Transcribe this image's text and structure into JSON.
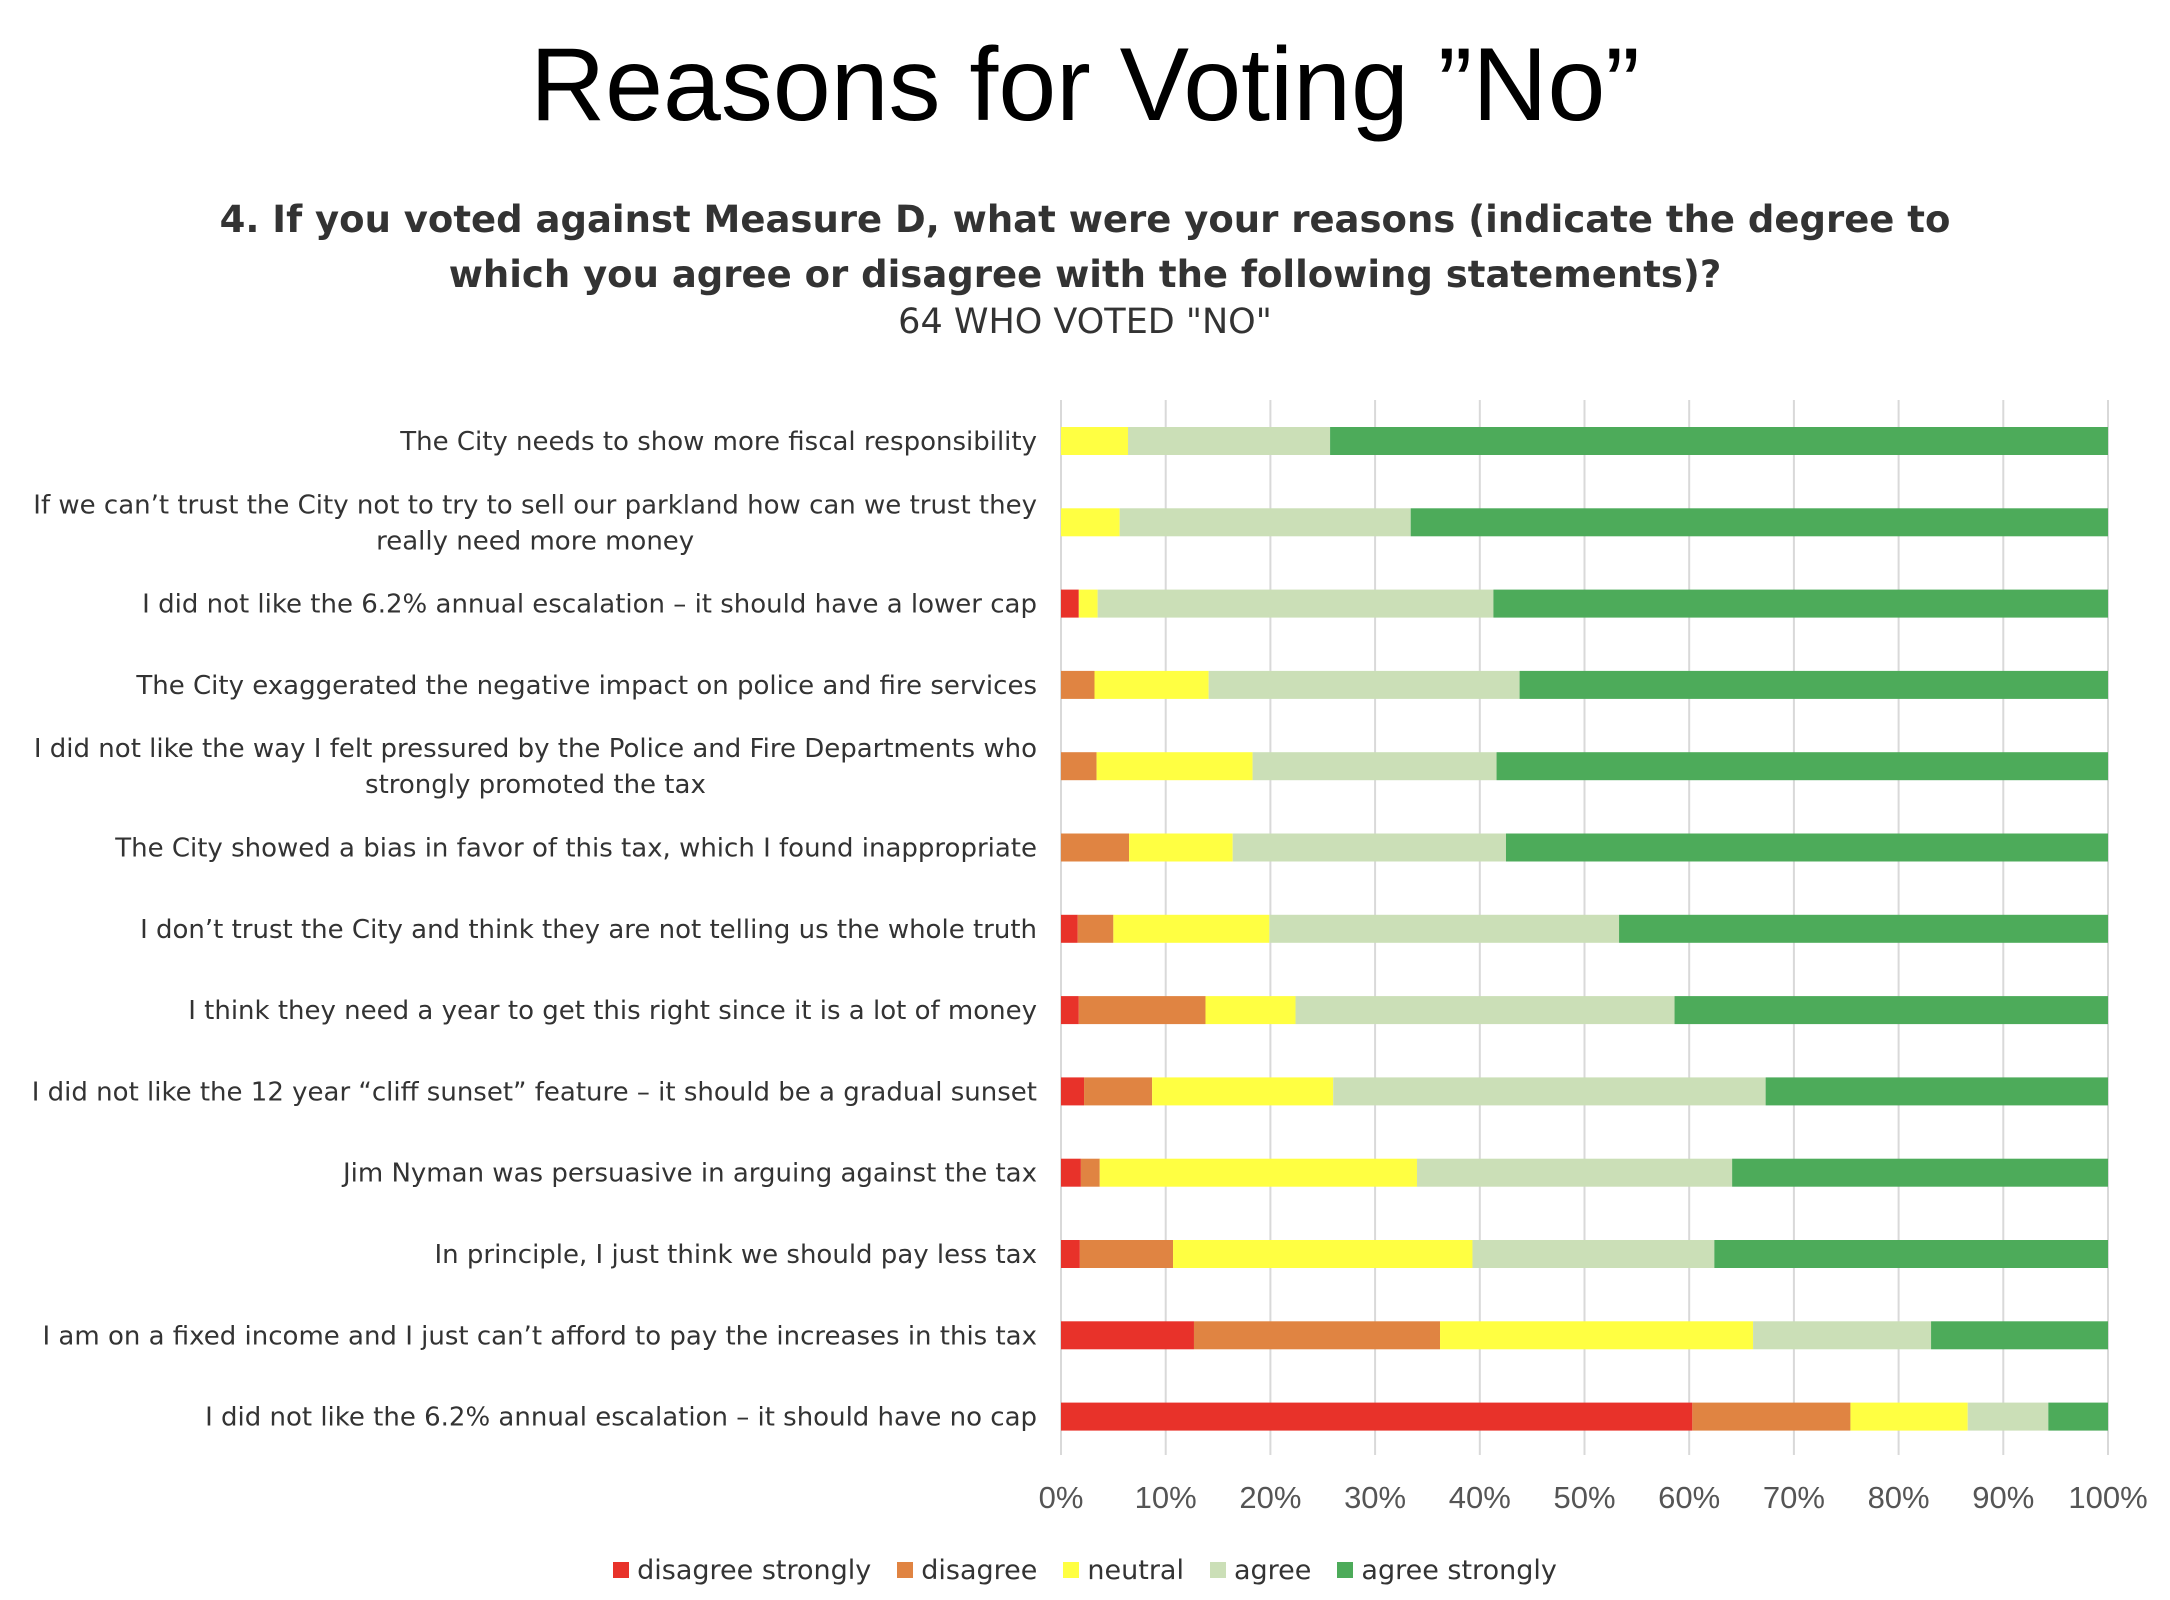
{
  "slide": {
    "title": "Reasons for Voting ”No”",
    "question": "4. If you voted against Measure D, what were your reasons (indicate the degree to which you agree or disagree with the following statements)?",
    "subtitle": "64 WHO VOTED \"NO\""
  },
  "chart_data": {
    "type": "bar",
    "orientation": "horizontal",
    "stacked": "percent",
    "title": "",
    "xlabel": "",
    "ylabel": "",
    "xlim": [
      0,
      100
    ],
    "x_ticks": [
      "0%",
      "10%",
      "20%",
      "30%",
      "40%",
      "50%",
      "60%",
      "70%",
      "80%",
      "90%",
      "100%"
    ],
    "grid": true,
    "legend_position": "bottom",
    "categories": [
      "The City needs to show more fiscal responsibility",
      "If we can’t trust the City not to try to sell our parkland how can we trust they really need more money",
      "I did not like the 6.2% annual escalation – it should have a lower cap",
      "The City exaggerated the negative impact on police and fire services",
      "I did not like the way I felt pressured by the Police and Fire Departments who strongly promoted the tax",
      "The City showed a bias in favor of this tax, which I found inappropriate",
      "I don’t trust the City and think they are not telling us the whole truth",
      "I think they need a year to get this right since it is a lot of money",
      "I did not like the 12 year “cliff sunset” feature – it should be a gradual sunset",
      "Jim Nyman was persuasive in arguing against the tax",
      "In principle, I just think we should pay less tax",
      "I am on a fixed income and I just can’t afford to pay the increases in this tax",
      "I did not like the 6.2% annual escalation – it should have no cap"
    ],
    "series": [
      {
        "name": "disagree strongly",
        "color": "#e8322a",
        "values": [
          0,
          0,
          1.7,
          0,
          0,
          0,
          1.6,
          1.7,
          2.2,
          1.9,
          1.8,
          12.7,
          60.3
        ]
      },
      {
        "name": "disagree",
        "color": "#e08442",
        "values": [
          0,
          0,
          0,
          3.2,
          3.4,
          6.5,
          3.4,
          12.1,
          6.5,
          1.8,
          8.9,
          23.5,
          15.1
        ]
      },
      {
        "name": "neutral",
        "color": "#ffff42",
        "values": [
          6.4,
          5.6,
          1.8,
          10.9,
          14.9,
          9.9,
          14.9,
          8.6,
          17.3,
          30.3,
          28.6,
          29.9,
          11.2
        ]
      },
      {
        "name": "agree",
        "color": "#cbdfb7",
        "values": [
          19.3,
          27.8,
          37.8,
          29.7,
          23.3,
          26.1,
          33.4,
          36.2,
          41.3,
          30.1,
          23.1,
          17.0,
          7.7
        ]
      },
      {
        "name": "agree strongly",
        "color": "#4dab5a",
        "values": [
          74.3,
          66.6,
          58.7,
          56.2,
          58.4,
          57.5,
          46.7,
          41.4,
          32.7,
          35.9,
          37.6,
          16.9,
          5.7
        ]
      }
    ]
  }
}
